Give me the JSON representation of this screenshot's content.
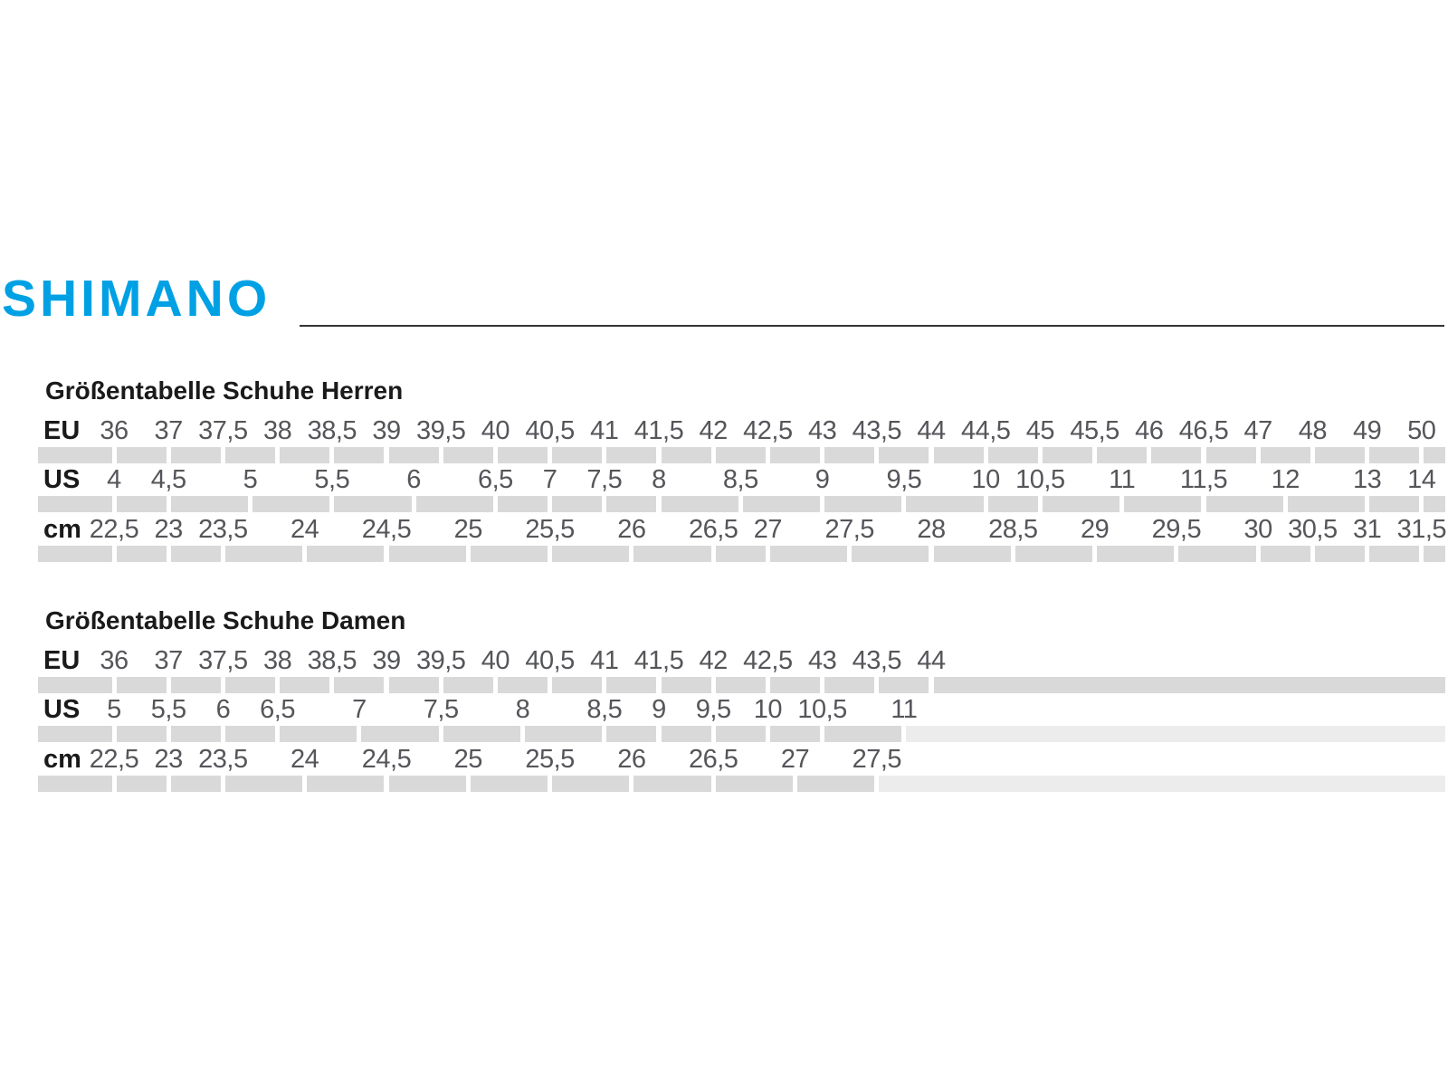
{
  "logo": {
    "text": "SHIMANO"
  },
  "colors": {
    "logo_blue": "#00a1e4",
    "bar_gray": "#d9d9d9",
    "bar_gray_light": "#ececec",
    "number_text": "#55565a",
    "heading_text": "#1a1a1a",
    "divider": "#333333"
  },
  "tables": [
    {
      "title": "Größentabelle Schuhe Herren",
      "rows": [
        {
          "label": "EU",
          "cells": [
            [
              "36",
              1
            ],
            [
              "37",
              1
            ],
            [
              "37,5",
              1
            ],
            [
              "38",
              1
            ],
            [
              "38,5",
              1
            ],
            [
              "39",
              1
            ],
            [
              "39,5",
              1
            ],
            [
              "40",
              1
            ],
            [
              "40,5",
              1
            ],
            [
              "41",
              1
            ],
            [
              "41,5",
              1
            ],
            [
              "42",
              1
            ],
            [
              "42,5",
              1
            ],
            [
              "43",
              1
            ],
            [
              "43,5",
              1
            ],
            [
              "44",
              1
            ],
            [
              "44,5",
              1
            ],
            [
              "45",
              1
            ],
            [
              "45,5",
              1
            ],
            [
              "46",
              1
            ],
            [
              "46,5",
              1
            ],
            [
              "47",
              1
            ],
            [
              "48",
              1
            ],
            [
              "49",
              1
            ],
            [
              "50",
              1
            ]
          ]
        },
        {
          "label": "US",
          "cells": [
            [
              "4",
              1
            ],
            [
              "4,5",
              1
            ],
            [
              "5",
              2
            ],
            [
              "5,5",
              1
            ],
            [
              "6",
              2
            ],
            [
              "6,5",
              1
            ],
            [
              "7",
              1
            ],
            [
              "7,5",
              1
            ],
            [
              "8",
              1
            ],
            [
              "8,5",
              2
            ],
            [
              "9",
              1
            ],
            [
              "9,5",
              2
            ],
            [
              "10",
              1
            ],
            [
              "10,5",
              1
            ],
            [
              "11",
              2
            ],
            [
              "11,5",
              1
            ],
            [
              "12",
              2
            ],
            [
              "13",
              1
            ],
            [
              "14",
              1
            ]
          ]
        },
        {
          "label": "cm",
          "cells": [
            [
              "22,5",
              1
            ],
            [
              "23",
              1
            ],
            [
              "23,5",
              1
            ],
            [
              "24",
              2
            ],
            [
              "24,5",
              1
            ],
            [
              "25",
              2
            ],
            [
              "25,5",
              1
            ],
            [
              "26",
              2
            ],
            [
              "26,5",
              1
            ],
            [
              "27",
              1
            ],
            [
              "27,5",
              2
            ],
            [
              "28",
              1
            ],
            [
              "28,5",
              2
            ],
            [
              "29",
              1
            ],
            [
              "29,5",
              2
            ],
            [
              "30",
              1
            ],
            [
              "30,5",
              1
            ],
            [
              "31",
              1
            ],
            [
              "31,5",
              1
            ]
          ]
        }
      ]
    },
    {
      "title": "Größentabelle Schuhe Damen",
      "rows": [
        {
          "label": "EU",
          "cells": [
            [
              "36",
              1
            ],
            [
              "37",
              1
            ],
            [
              "37,5",
              1
            ],
            [
              "38",
              1
            ],
            [
              "38,5",
              1
            ],
            [
              "39",
              1
            ],
            [
              "39,5",
              1
            ],
            [
              "40",
              1
            ],
            [
              "40,5",
              1
            ],
            [
              "41",
              1
            ],
            [
              "41,5",
              1
            ],
            [
              "42",
              1
            ],
            [
              "42,5",
              1
            ],
            [
              "43",
              1
            ],
            [
              "43,5",
              1
            ],
            [
              "44",
              1
            ]
          ]
        },
        {
          "label": "US",
          "trail_light": true,
          "cells": [
            [
              "5",
              1
            ],
            [
              "5,5",
              1
            ],
            [
              "6",
              1
            ],
            [
              "6,5",
              1
            ],
            [
              "7",
              2
            ],
            [
              "7,5",
              1
            ],
            [
              "8",
              2
            ],
            [
              "8,5",
              1
            ],
            [
              "9",
              1
            ],
            [
              "9,5",
              1
            ],
            [
              "10",
              1
            ],
            [
              "10,5",
              1
            ],
            [
              "11",
              2
            ]
          ]
        },
        {
          "label": "cm",
          "trail_light": true,
          "cells": [
            [
              "22,5",
              1
            ],
            [
              "23",
              1
            ],
            [
              "23,5",
              1
            ],
            [
              "24",
              2
            ],
            [
              "24,5",
              1
            ],
            [
              "25",
              2
            ],
            [
              "25,5",
              1
            ],
            [
              "26",
              2
            ],
            [
              "26,5",
              1
            ],
            [
              "27",
              2
            ],
            [
              "27,5",
              1
            ]
          ]
        }
      ]
    }
  ]
}
